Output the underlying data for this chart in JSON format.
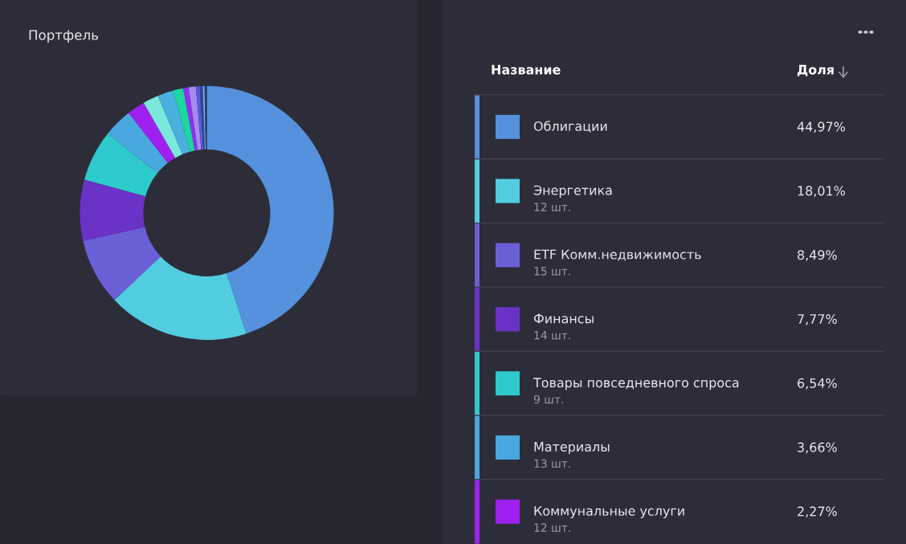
{
  "chart_data": {
    "type": "donut",
    "title": "Портфель",
    "categories": [
      "Облигации",
      "Энергетика",
      "ETF Комм.недвижимость",
      "Финансы",
      "Товары повседневного спроса",
      "Материалы",
      "Коммунальные услуги",
      null,
      null,
      null,
      null,
      null,
      null,
      null,
      null,
      null
    ],
    "values": [
      44.97,
      18.01,
      8.49,
      7.77,
      6.54,
      3.66,
      2.27,
      2.0,
      2.0,
      1.3,
      0.7,
      0.9,
      0.5,
      0.4,
      0.2,
      0.29
    ],
    "colors": [
      "#5591dc",
      "#52cde0",
      "#6a5fd6",
      "#6b32c8",
      "#2fcacb",
      "#4aa8e0",
      "#a020f0",
      "#7ae8dc",
      "#49b0e0",
      "#1bd6a0",
      "#9030f0",
      "#a78af0",
      "#5a5ad8",
      "#2a4a9a",
      "#8ab8e8",
      "#2a3a70"
    ],
    "value_labels": [
      "44,97%",
      "18,01%",
      "8,49%",
      "7,77%",
      "6,54%",
      "3,66%",
      "2,27%",
      null,
      null,
      null,
      null,
      null,
      null,
      null,
      null,
      null
    ],
    "annotations": [
      "Название",
      "Доля",
      "12 шт.",
      "15 шт.",
      "14 шт.",
      "9 шт.",
      "13 шт.",
      "12 шт."
    ],
    "legend": "right"
  }
}
